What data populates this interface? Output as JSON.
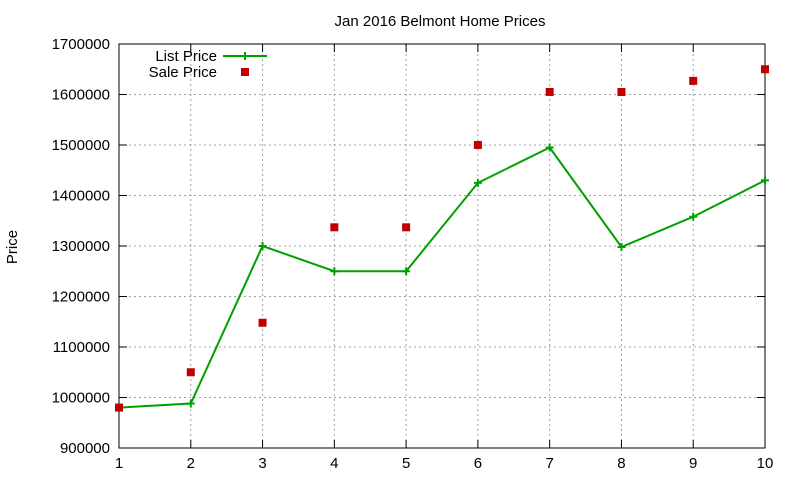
{
  "chart_data": {
    "type": "line",
    "title": "Jan 2016 Belmont Home Prices",
    "xlabel": "",
    "ylabel": "Price",
    "x": [
      1,
      2,
      3,
      4,
      5,
      6,
      7,
      8,
      9,
      10
    ],
    "xlim": [
      1,
      10
    ],
    "ylim": [
      900000,
      1700000
    ],
    "x_ticks": [
      "1",
      "2",
      "3",
      "4",
      "5",
      "6",
      "7",
      "8",
      "9",
      "10"
    ],
    "y_ticks": [
      "900000",
      "1000000",
      "1100000",
      "1200000",
      "1300000",
      "1400000",
      "1500000",
      "1600000",
      "1700000"
    ],
    "grid": true,
    "legend_position": "top-left",
    "series": [
      {
        "name": "List Price",
        "style": "line-with-plus-markers",
        "color": "#00a000",
        "values": [
          980000,
          988000,
          1300000,
          1250000,
          1250000,
          1425000,
          1495000,
          1298000,
          1358000,
          1430000
        ]
      },
      {
        "name": "Sale Price",
        "style": "square-markers",
        "color": "#c00000",
        "values": [
          980000,
          1050000,
          1148000,
          1337000,
          1337000,
          1500000,
          1605000,
          1605000,
          1627000,
          1650000
        ]
      }
    ]
  }
}
